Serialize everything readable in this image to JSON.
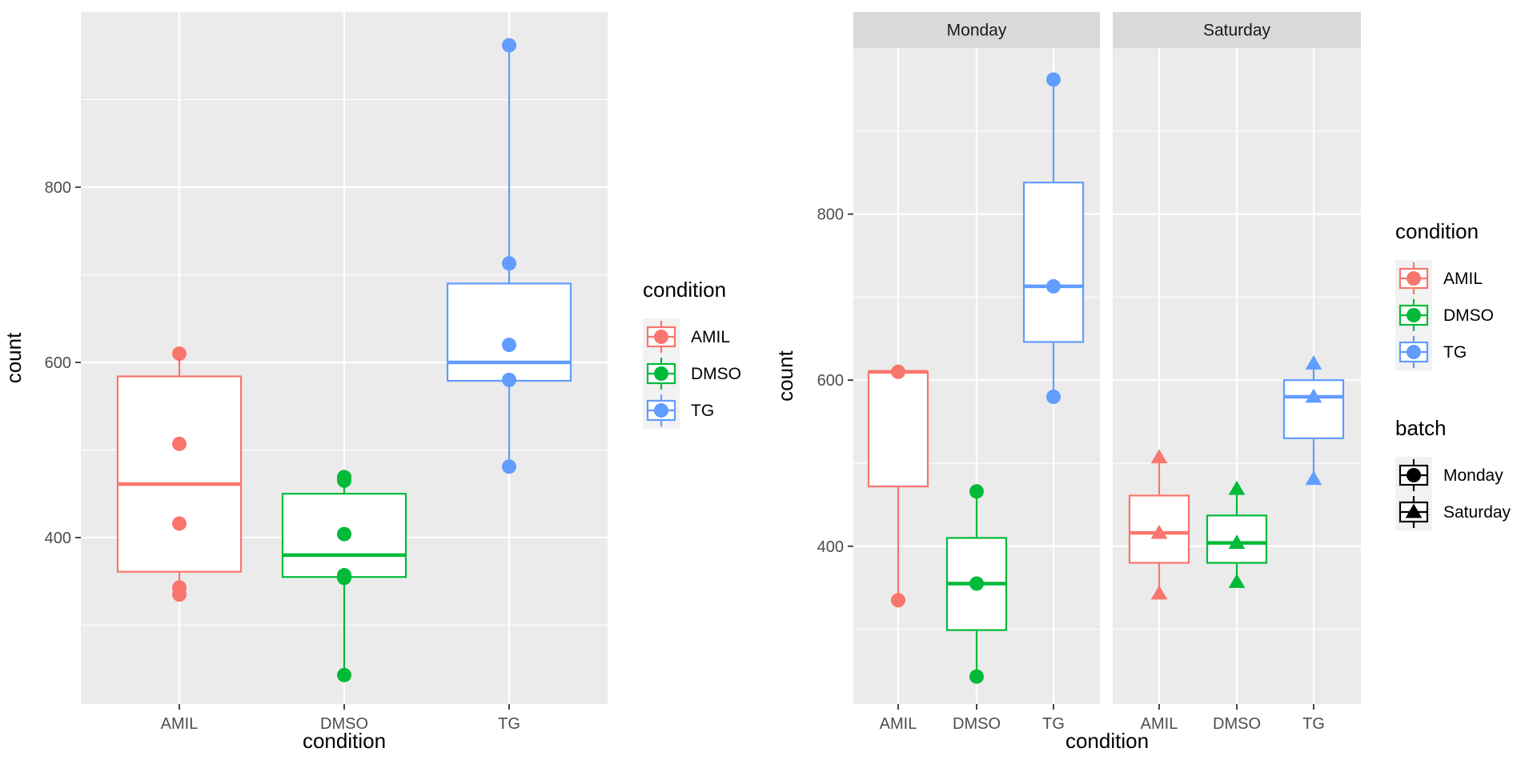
{
  "chart_data": [
    {
      "type": "boxplot",
      "xlabel": "condition",
      "ylabel": "count",
      "categories": [
        "AMIL",
        "DMSO",
        "TG"
      ],
      "ylim": [
        210,
        1000
      ],
      "yticks": [
        400,
        600,
        800
      ],
      "grid": true,
      "legend": {
        "placement": "right",
        "groups": [
          {
            "title": "condition",
            "entries": [
              {
                "label": "AMIL",
                "color": "#F8766D",
                "shape": "circle"
              },
              {
                "label": "DMSO",
                "color": "#00BA38",
                "shape": "circle"
              },
              {
                "label": "TG",
                "color": "#619CFF",
                "shape": "circle"
              }
            ]
          }
        ]
      },
      "panels": [
        {
          "strip": "",
          "boxes": [
            {
              "category": "AMIL",
              "color": "#F8766D",
              "whisker_low": 334,
              "q1": 361,
              "median": 461,
              "q3": 584,
              "whisker_high": 610,
              "points": [
                {
                  "y": 610
                },
                {
                  "y": 507
                },
                {
                  "y": 416
                },
                {
                  "y": 343
                },
                {
                  "y": 335
                }
              ]
            },
            {
              "category": "DMSO",
              "color": "#00BA38",
              "whisker_low": 243,
              "q1": 355,
              "median": 380,
              "q3": 450,
              "whisker_high": 470,
              "points": [
                {
                  "y": 469
                },
                {
                  "y": 465
                },
                {
                  "y": 404
                },
                {
                  "y": 357
                },
                {
                  "y": 354
                },
                {
                  "y": 243
                }
              ]
            },
            {
              "category": "TG",
              "color": "#619CFF",
              "whisker_low": 481,
              "q1": 579,
              "median": 600,
              "q3": 690,
              "whisker_high": 962,
              "points": [
                {
                  "y": 962
                },
                {
                  "y": 713
                },
                {
                  "y": 620
                },
                {
                  "y": 580
                },
                {
                  "y": 481
                }
              ]
            }
          ]
        }
      ]
    },
    {
      "type": "boxplot",
      "xlabel": "condition",
      "ylabel": "count",
      "categories": [
        "AMIL",
        "DMSO",
        "TG"
      ],
      "ylim": [
        210,
        1000
      ],
      "yticks": [
        400,
        600,
        800
      ],
      "grid": true,
      "legend": {
        "placement": "right",
        "groups": [
          {
            "title": "condition",
            "entries": [
              {
                "label": "AMIL",
                "color": "#F8766D",
                "shape": "circle"
              },
              {
                "label": "DMSO",
                "color": "#00BA38",
                "shape": "circle"
              },
              {
                "label": "TG",
                "color": "#619CFF",
                "shape": "circle"
              }
            ]
          },
          {
            "title": "batch",
            "entries": [
              {
                "label": "Monday",
                "color": "#000000",
                "shape": "circle"
              },
              {
                "label": "Saturday",
                "color": "#000000",
                "shape": "triangle"
              }
            ]
          }
        ]
      },
      "panels": [
        {
          "strip": "Monday",
          "boxes": [
            {
              "category": "AMIL",
              "color": "#F8766D",
              "whisker_low": 335,
              "q1": 472,
              "median": 610,
              "q3": 610,
              "whisker_high": 610,
              "points": [
                {
                  "y": 610,
                  "shape": "circle"
                },
                {
                  "y": 335,
                  "shape": "circle"
                }
              ]
            },
            {
              "category": "DMSO",
              "color": "#00BA38",
              "whisker_low": 243,
              "q1": 299,
              "median": 355,
              "q3": 410,
              "whisker_high": 466,
              "points": [
                {
                  "y": 466,
                  "shape": "circle"
                },
                {
                  "y": 355,
                  "shape": "circle"
                },
                {
                  "y": 243,
                  "shape": "circle"
                }
              ]
            },
            {
              "category": "TG",
              "color": "#619CFF",
              "whisker_low": 580,
              "q1": 646,
              "median": 713,
              "q3": 838,
              "whisker_high": 962,
              "points": [
                {
                  "y": 962,
                  "shape": "circle"
                },
                {
                  "y": 713,
                  "shape": "circle"
                },
                {
                  "y": 580,
                  "shape": "circle"
                }
              ]
            }
          ]
        },
        {
          "strip": "Saturday",
          "boxes": [
            {
              "category": "AMIL",
              "color": "#F8766D",
              "whisker_low": 343,
              "q1": 380,
              "median": 416,
              "q3": 461,
              "whisker_high": 507,
              "points": [
                {
                  "y": 507,
                  "shape": "triangle"
                },
                {
                  "y": 416,
                  "shape": "triangle"
                },
                {
                  "y": 343,
                  "shape": "triangle"
                }
              ]
            },
            {
              "category": "DMSO",
              "color": "#00BA38",
              "whisker_low": 357,
              "q1": 380,
              "median": 404,
              "q3": 437,
              "whisker_high": 469,
              "points": [
                {
                  "y": 469,
                  "shape": "triangle"
                },
                {
                  "y": 404,
                  "shape": "triangle"
                },
                {
                  "y": 357,
                  "shape": "triangle"
                }
              ]
            },
            {
              "category": "TG",
              "color": "#619CFF",
              "whisker_low": 481,
              "q1": 530,
              "median": 580,
              "q3": 600,
              "whisker_high": 620,
              "points": [
                {
                  "y": 620,
                  "shape": "triangle"
                },
                {
                  "y": 580,
                  "shape": "triangle"
                },
                {
                  "y": 481,
                  "shape": "triangle"
                }
              ]
            }
          ]
        }
      ]
    }
  ]
}
